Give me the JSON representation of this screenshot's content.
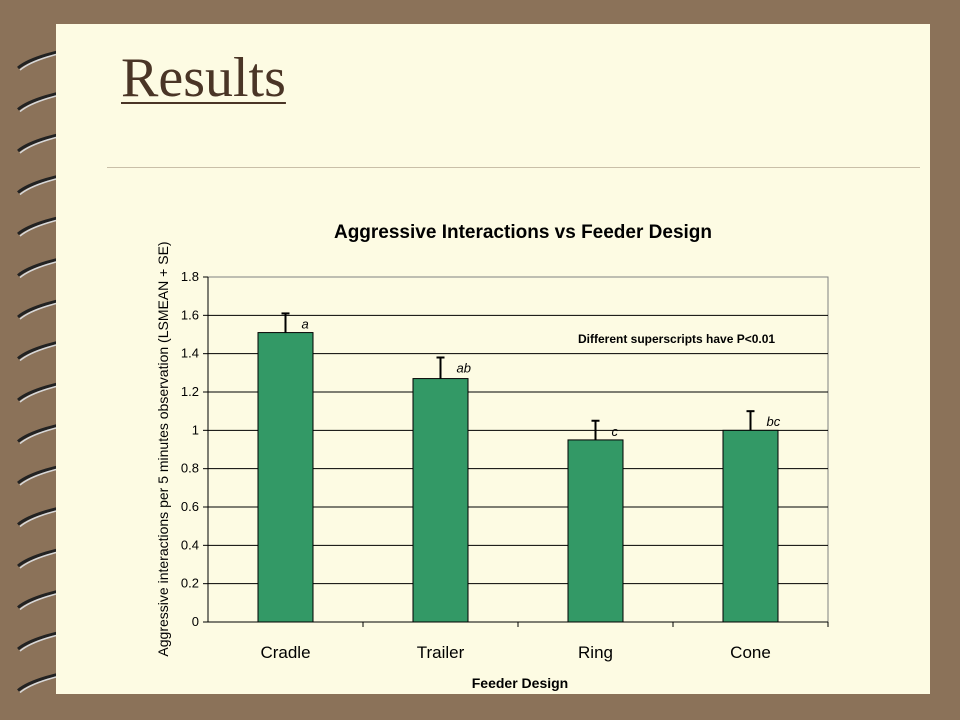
{
  "slide": {
    "title": "Results"
  },
  "chart_data": {
    "type": "bar",
    "title": "Aggressive Interactions vs Feeder Design",
    "xlabel": "Feeder Design",
    "ylabel": "Aggressive interactions per 5 minutes observation (LSMEAN + SE)",
    "categories": [
      "Cradle",
      "Trailer",
      "Ring",
      "Cone"
    ],
    "values": [
      1.51,
      1.27,
      0.95,
      1.0
    ],
    "errors": [
      0.1,
      0.11,
      0.1,
      0.1
    ],
    "superscripts": [
      "a",
      "ab",
      "c",
      "bc"
    ],
    "annotation": "Different superscripts have P<0.01",
    "ylim": [
      0,
      1.8
    ],
    "yticks": [
      "0",
      "0.2",
      "0.4",
      "0.6",
      "0.8",
      "1",
      "1.2",
      "1.4",
      "1.6",
      "1.8"
    ],
    "grid": true,
    "bar_color": "#339966"
  }
}
